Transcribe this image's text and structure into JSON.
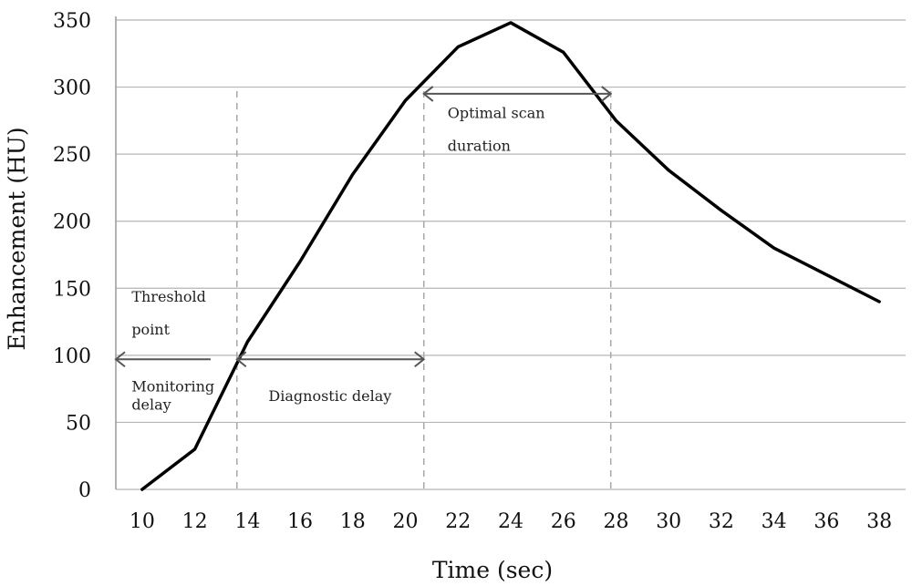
{
  "chart_data": {
    "type": "line",
    "title": "",
    "xlabel": "Time (sec)",
    "ylabel": "Enhancement (HU)",
    "xlim": [
      9,
      39
    ],
    "ylim": [
      0,
      350
    ],
    "xticks": [
      10,
      12,
      14,
      16,
      18,
      20,
      22,
      24,
      26,
      28,
      30,
      32,
      34,
      36,
      38
    ],
    "yticks": [
      0,
      50,
      100,
      150,
      200,
      250,
      300,
      350
    ],
    "grid": "horizontal",
    "series": [
      {
        "x": [
          10,
          12,
          14,
          16,
          18,
          20,
          22,
          24,
          26,
          28,
          30,
          32,
          34,
          36,
          38
        ],
        "y": [
          0,
          30,
          110,
          170,
          235,
          290,
          330,
          348,
          326,
          275,
          238,
          208,
          180,
          160,
          140
        ]
      }
    ],
    "guide_lines_x": [
      13.6,
      20.7,
      27.8
    ],
    "annotations": [
      {
        "id": "threshold",
        "lines": [
          "Threshold",
          "point"
        ],
        "x": 9.6,
        "y": 140
      },
      {
        "id": "monitoring",
        "lines": [
          "Monitoring",
          "delay"
        ],
        "x": 9.6,
        "y": 73
      },
      {
        "id": "diagnostic",
        "lines": [
          "Diagnostic delay"
        ],
        "x": 14.8,
        "y": 66
      },
      {
        "id": "optimal",
        "lines": [
          "Optimal scan",
          "duration"
        ],
        "x": 21.6,
        "y": 277
      }
    ],
    "arrows": [
      {
        "id": "monitoring-arrow",
        "x1": 9.0,
        "x2": 12.6,
        "y": 97,
        "heads": "start"
      },
      {
        "id": "diagnostic-arrow",
        "x1": 13.6,
        "x2": 20.7,
        "y": 97,
        "heads": "both"
      },
      {
        "id": "optimal-arrow",
        "x1": 20.7,
        "x2": 27.8,
        "y": 295,
        "heads": "both"
      }
    ]
  }
}
